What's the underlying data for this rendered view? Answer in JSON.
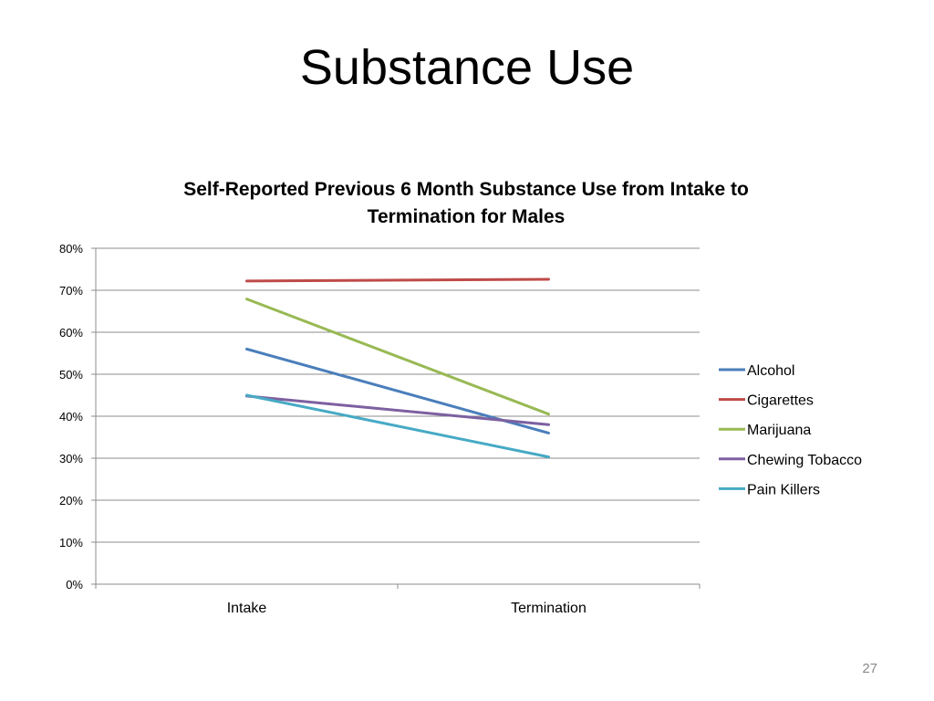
{
  "slide": {
    "title": "Substance Use",
    "page_number": "27"
  },
  "chart_data": {
    "type": "line",
    "title_lines": [
      "Self-Reported Previous 6 Month Substance Use from Intake to",
      "Termination for Males"
    ],
    "categories": [
      "Intake",
      "Termination"
    ],
    "ylim": [
      0,
      80
    ],
    "yticks": [
      "0%",
      "10%",
      "20%",
      "30%",
      "40%",
      "50%",
      "60%",
      "70%",
      "80%"
    ],
    "ytick_values": [
      0,
      10,
      20,
      30,
      40,
      50,
      60,
      70,
      80
    ],
    "y_unit": "percent",
    "grid": true,
    "legend_position": "right",
    "series": [
      {
        "name": "Alcohol",
        "values": [
          56,
          36
        ],
        "color": "#4a7ebb"
      },
      {
        "name": "Cigarettes",
        "values": [
          72.2,
          72.6
        ],
        "color": "#be4b48"
      },
      {
        "name": "Marijuana",
        "values": [
          67.9,
          40.5
        ],
        "color": "#98b954"
      },
      {
        "name": "Chewing Tobacco",
        "values": [
          44.8,
          38
        ],
        "color": "#7d60a0"
      },
      {
        "name": "Pain Killers",
        "values": [
          45,
          30.3
        ],
        "color": "#46aac5"
      }
    ]
  }
}
